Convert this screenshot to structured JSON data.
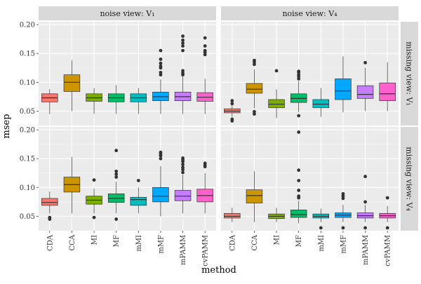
{
  "chart_data": {
    "type": "boxplot",
    "xlabel": "method",
    "ylabel": "msep",
    "categories": [
      "CDA",
      "CCA",
      "MI",
      "MF",
      "mMI",
      "mMF",
      "mPAMM",
      "cvPAMM"
    ],
    "colors": [
      "#F8766D",
      "#CD9600",
      "#7CAE00",
      "#00BE67",
      "#00BFC4",
      "#00A9FF",
      "#C77CFF",
      "#FF61CC"
    ],
    "ylim": [
      0.025,
      0.205
    ],
    "yticks": [
      0.05,
      0.1,
      0.15,
      0.2
    ],
    "ytick_labels": [
      "0.05",
      "0.10",
      "0.15",
      "0.20"
    ],
    "col_strips": [
      "noise view: V₁",
      "noise view: V₄"
    ],
    "row_strips": [
      "missing view: V₁",
      "missing view: V₄"
    ],
    "panels": [
      {
        "row": 0,
        "col": 0,
        "boxes": [
          {
            "q1": 0.066,
            "median": 0.073,
            "q3": 0.08,
            "wlo": 0.045,
            "whi": 0.088,
            "outliers": []
          },
          {
            "q1": 0.084,
            "median": 0.1,
            "q3": 0.113,
            "wlo": 0.05,
            "whi": 0.138,
            "outliers": []
          },
          {
            "q1": 0.067,
            "median": 0.073,
            "q3": 0.08,
            "wlo": 0.045,
            "whi": 0.09,
            "outliers": []
          },
          {
            "q1": 0.066,
            "median": 0.073,
            "q3": 0.08,
            "wlo": 0.045,
            "whi": 0.095,
            "outliers": []
          },
          {
            "q1": 0.066,
            "median": 0.073,
            "q3": 0.08,
            "wlo": 0.045,
            "whi": 0.09,
            "outliers": []
          },
          {
            "q1": 0.068,
            "median": 0.075,
            "q3": 0.083,
            "wlo": 0.045,
            "whi": 0.105,
            "outliers": [
              0.113,
              0.117,
              0.125,
              0.128,
              0.133,
              0.14,
              0.155
            ]
          },
          {
            "q1": 0.068,
            "median": 0.075,
            "q3": 0.083,
            "wlo": 0.045,
            "whi": 0.11,
            "outliers": [
              0.113,
              0.116,
              0.12,
              0.155,
              0.163,
              0.168,
              0.173,
              0.18
            ]
          },
          {
            "q1": 0.067,
            "median": 0.074,
            "q3": 0.082,
            "wlo": 0.045,
            "whi": 0.106,
            "outliers": [
              0.148,
              0.152,
              0.155,
              0.163,
              0.177
            ]
          }
        ]
      },
      {
        "row": 0,
        "col": 1,
        "boxes": [
          {
            "q1": 0.047,
            "median": 0.05,
            "q3": 0.054,
            "wlo": 0.04,
            "whi": 0.06,
            "outliers": [
              0.033,
              0.036,
              0.063,
              0.068
            ]
          },
          {
            "q1": 0.081,
            "median": 0.088,
            "q3": 0.098,
            "wlo": 0.055,
            "whi": 0.122,
            "outliers": [
              0.045,
              0.049,
              0.131,
              0.135,
              0.138
            ]
          },
          {
            "q1": 0.056,
            "median": 0.062,
            "q3": 0.07,
            "wlo": 0.038,
            "whi": 0.088,
            "outliers": [
              0.12
            ]
          },
          {
            "q1": 0.065,
            "median": 0.072,
            "q3": 0.08,
            "wlo": 0.048,
            "whi": 0.102,
            "outliers": [
              0.042,
              0.106,
              0.11,
              0.113,
              0.117,
              0.119
            ]
          },
          {
            "q1": 0.056,
            "median": 0.062,
            "q3": 0.07,
            "wlo": 0.04,
            "whi": 0.09,
            "outliers": []
          },
          {
            "q1": 0.07,
            "median": 0.085,
            "q3": 0.106,
            "wlo": 0.048,
            "whi": 0.145,
            "outliers": []
          },
          {
            "q1": 0.072,
            "median": 0.079,
            "q3": 0.094,
            "wlo": 0.05,
            "whi": 0.125,
            "outliers": [
              0.134
            ]
          },
          {
            "q1": 0.068,
            "median": 0.08,
            "q3": 0.099,
            "wlo": 0.05,
            "whi": 0.135,
            "outliers": []
          }
        ]
      },
      {
        "row": 1,
        "col": 0,
        "boxes": [
          {
            "q1": 0.069,
            "median": 0.074,
            "q3": 0.081,
            "wlo": 0.055,
            "whi": 0.093,
            "outliers": [
              0.045,
              0.048
            ]
          },
          {
            "q1": 0.092,
            "median": 0.105,
            "q3": 0.118,
            "wlo": 0.055,
            "whi": 0.153,
            "outliers": []
          },
          {
            "q1": 0.071,
            "median": 0.078,
            "q3": 0.085,
            "wlo": 0.055,
            "whi": 0.098,
            "outliers": [
              0.048,
              0.113
            ]
          },
          {
            "q1": 0.074,
            "median": 0.081,
            "q3": 0.089,
            "wlo": 0.055,
            "whi": 0.11,
            "outliers": [
              0.045,
              0.118,
              0.123,
              0.128,
              0.164
            ]
          },
          {
            "q1": 0.069,
            "median": 0.079,
            "q3": 0.083,
            "wlo": 0.055,
            "whi": 0.1,
            "outliers": [
              0.112
            ]
          },
          {
            "q1": 0.075,
            "median": 0.085,
            "q3": 0.1,
            "wlo": 0.05,
            "whi": 0.137,
            "outliers": [
              0.15,
              0.155,
              0.158,
              0.161
            ]
          },
          {
            "q1": 0.077,
            "median": 0.085,
            "q3": 0.095,
            "wlo": 0.055,
            "whi": 0.122,
            "outliers": [
              0.126,
              0.131,
              0.135,
              0.14,
              0.145,
              0.148,
              0.151
            ]
          },
          {
            "q1": 0.075,
            "median": 0.086,
            "q3": 0.097,
            "wlo": 0.055,
            "whi": 0.125,
            "outliers": [
              0.136,
              0.139,
              0.142
            ]
          }
        ]
      },
      {
        "row": 1,
        "col": 1,
        "boxes": [
          {
            "q1": 0.047,
            "median": 0.05,
            "q3": 0.055,
            "wlo": 0.04,
            "whi": 0.065,
            "outliers": []
          },
          {
            "q1": 0.073,
            "median": 0.086,
            "q3": 0.096,
            "wlo": 0.04,
            "whi": 0.128,
            "outliers": []
          },
          {
            "q1": 0.046,
            "median": 0.05,
            "q3": 0.054,
            "wlo": 0.04,
            "whi": 0.065,
            "outliers": []
          },
          {
            "q1": 0.048,
            "median": 0.053,
            "q3": 0.061,
            "wlo": 0.038,
            "whi": 0.077,
            "outliers": [
              0.082,
              0.085,
              0.095,
              0.112,
              0.13,
              0.196
            ]
          },
          {
            "q1": 0.047,
            "median": 0.05,
            "q3": 0.054,
            "wlo": 0.04,
            "whi": 0.063,
            "outliers": [
              0.03
            ]
          },
          {
            "q1": 0.048,
            "median": 0.052,
            "q3": 0.056,
            "wlo": 0.04,
            "whi": 0.07,
            "outliers": [
              0.03,
              0.081,
              0.085,
              0.089
            ]
          },
          {
            "q1": 0.047,
            "median": 0.051,
            "q3": 0.056,
            "wlo": 0.04,
            "whi": 0.07,
            "outliers": [
              0.03,
              0.075,
              0.119
            ]
          },
          {
            "q1": 0.047,
            "median": 0.051,
            "q3": 0.055,
            "wlo": 0.04,
            "whi": 0.068,
            "outliers": [
              0.03,
              0.082
            ]
          }
        ]
      }
    ]
  }
}
